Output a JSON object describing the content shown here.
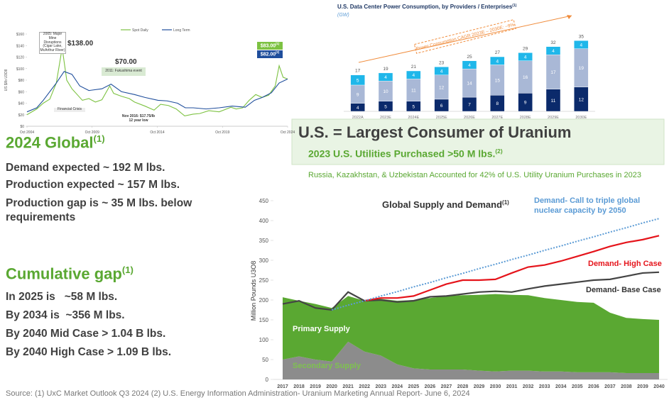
{
  "left": {
    "global": {
      "title": "2024 Global",
      "note": "(1)",
      "lines": [
        "Demand expected ~ 192 M lbs.",
        "Production expected ~ 157 M lbs.",
        "Production gap is ~ 35 M lbs. below requirements"
      ]
    },
    "cumulative": {
      "title": "Cumulative gap",
      "note": "(1)",
      "lines": [
        "In 2025 is   ~58 M lbs.",
        "By 2034 is  ~356 M lbs.",
        "By 2040 Mid Case > 1.04 B lbs.",
        "By 2040 High Case > 1.09 B lbs."
      ]
    }
  },
  "us_box": {
    "title": "U.S. = Largest Consumer of Uranium",
    "subtitle": "2023 U.S. Utilities Purchased >50 M lbs.",
    "subtitle_note": "(2)",
    "detail": "Russia, Kazakhstan, & Uzbekistan Accounted for 42% of U.S. Utility Uranium Purchases in 2023"
  },
  "source": "Source: (1) UxC Market Outlook Q3 2024 (2) U.S. Energy Information Administration- Uranium Marketing Annual Report- June 6, 2024",
  "chart_data": [
    {
      "type": "line",
      "ylabel": "US $/lb U3O8",
      "xlim": [
        2004.75,
        2024.75
      ],
      "xticks": [
        {
          "value": 2004.75,
          "label": "Oct 2004"
        },
        {
          "value": 2009.75,
          "label": "Oct 2009"
        },
        {
          "value": 2014.75,
          "label": "Oct 2014"
        },
        {
          "value": 2019.75,
          "label": "Oct 2019"
        },
        {
          "value": 2024.75,
          "label": "Oct 2024"
        }
      ],
      "ylim": [
        0,
        160
      ],
      "yticks": [
        {
          "value": 0,
          "label": "$0"
        },
        {
          "value": 20,
          "label": "$20"
        },
        {
          "value": 40,
          "label": "$40"
        },
        {
          "value": 60,
          "label": "$60"
        },
        {
          "value": 80,
          "label": "$80"
        },
        {
          "value": 100,
          "label": "$100"
        },
        {
          "value": 120,
          "label": "$120"
        },
        {
          "value": 140,
          "label": "$140"
        },
        {
          "value": 160,
          "label": "$160"
        }
      ],
      "series": [
        {
          "name": "Spot Daily",
          "color": "#7dc242",
          "x": [
            2004.75,
            2005.5,
            2006,
            2006.5,
            2007,
            2007.45,
            2007.8,
            2008.2,
            2008.6,
            2009,
            2009.5,
            2010,
            2010.5,
            2011.1,
            2011.4,
            2012,
            2012.6,
            2013,
            2013.8,
            2014.5,
            2015,
            2015.6,
            2016.2,
            2016.85,
            2017.5,
            2018,
            2018.7,
            2019.5,
            2020.4,
            2020.8,
            2021.3,
            2021.8,
            2022.3,
            2022.8,
            2023.3,
            2023.8,
            2024.1,
            2024.4,
            2024.75
          ],
          "values": [
            20,
            30,
            40,
            47,
            75,
            136,
            80,
            65,
            55,
            45,
            48,
            42,
            46,
            70,
            57,
            52,
            48,
            42,
            35,
            28,
            38,
            36,
            30,
            18,
            21,
            22,
            27,
            25,
            33,
            30,
            32,
            45,
            55,
            50,
            54,
            70,
            105,
            85,
            82
          ]
        },
        {
          "name": "Long Term",
          "color": "#1f4e9c",
          "x": [
            2004.75,
            2005.5,
            2006,
            2007,
            2007.6,
            2008.2,
            2008.8,
            2009.5,
            2010.5,
            2011.2,
            2012,
            2013,
            2013.8,
            2014.8,
            2015.5,
            2016.3,
            2016.9,
            2017.5,
            2018.5,
            2019.5,
            2020.5,
            2021.5,
            2022.2,
            2022.8,
            2023.5,
            2024.1,
            2024.75
          ],
          "values": [
            25,
            32,
            45,
            75,
            95,
            90,
            70,
            62,
            65,
            73,
            60,
            55,
            50,
            45,
            44,
            40,
            32,
            32,
            30,
            32,
            35,
            33,
            45,
            50,
            58,
            75,
            82
          ]
        }
      ],
      "annotations": [
        {
          "text": "$138.00"
        },
        {
          "text": "2005: Major Mine Disruptions (Cigar Lake, McArthur River)"
        },
        {
          "text": "$70.00"
        },
        {
          "text": "2011: Fukushima event"
        },
        {
          "text": "Financial Crisis"
        },
        {
          "text": "Nov 2016: $17.75/lb 12 year low"
        },
        {
          "text": "$83.00",
          "note": "(1)"
        },
        {
          "text": "$82.00",
          "note": "(2)"
        }
      ]
    },
    {
      "type": "bar",
      "title": "U.S. Data Center Power Consumption, by Providers / Enterprises",
      "title_note": "(1)",
      "subtitle": "(GW)",
      "annotation": "Power Consumption CAGR 2023E – 2030E: ~9%",
      "categories": [
        "2022A",
        "2023E",
        "2024E",
        "2025E",
        "2026E",
        "2027E",
        "2028E",
        "2029E",
        "2030E"
      ],
      "ylim": [
        0,
        40
      ],
      "series": [
        {
          "color": "#0b2a6b",
          "values": [
            4,
            5,
            5,
            6,
            7,
            8,
            9,
            11,
            12
          ]
        },
        {
          "color": "#a9b8d6",
          "values": [
            9,
            10,
            11,
            12,
            14,
            15,
            16,
            17,
            19
          ]
        },
        {
          "color": "#1fb7ea",
          "values": [
            5,
            4,
            4,
            4,
            4,
            4,
            4,
            4,
            4
          ]
        }
      ],
      "totals": [
        17,
        19,
        21,
        23,
        25,
        27,
        29,
        32,
        35
      ]
    },
    {
      "type": "area",
      "title": "Global Supply and Demand",
      "title_note": "(1)",
      "ylabel": "Million Pounds U3O8",
      "categories": [
        "2017",
        "2018",
        "2019",
        "2020",
        "2021",
        "2022",
        "2023",
        "2024",
        "2025",
        "2026",
        "2027",
        "2028",
        "2029",
        "2030",
        "2031",
        "2032",
        "2033",
        "2034",
        "2035",
        "2036",
        "2037",
        "2038",
        "2039",
        "2040"
      ],
      "ylim": [
        0,
        450
      ],
      "yticks": [
        0,
        50,
        100,
        150,
        200,
        250,
        300,
        350,
        400,
        450
      ],
      "series": [
        {
          "name": "Secondary Supply",
          "kind": "area",
          "stacked": true,
          "color": "#8c8c8c",
          "values": [
            50,
            58,
            50,
            45,
            95,
            70,
            60,
            38,
            28,
            25,
            25,
            25,
            22,
            20,
            22,
            22,
            20,
            20,
            18,
            18,
            18,
            16,
            16,
            16
          ]
        },
        {
          "name": "Primary Supply",
          "kind": "area",
          "stacked": true,
          "color": "#5aa832",
          "values": [
            157,
            140,
            140,
            135,
            115,
            128,
            143,
            160,
            172,
            180,
            185,
            187,
            191,
            195,
            191,
            190,
            185,
            180,
            177,
            175,
            150,
            139,
            136,
            134
          ]
        },
        {
          "name": "Demand- Base Case",
          "kind": "line",
          "color": "#444444",
          "values": [
            190,
            198,
            180,
            175,
            220,
            198,
            200,
            195,
            198,
            208,
            210,
            215,
            220,
            222,
            220,
            228,
            235,
            240,
            245,
            250,
            252,
            260,
            268,
            270
          ]
        },
        {
          "name": "Demand- High Case",
          "kind": "line",
          "color": "#e5141b",
          "values": [
            null,
            null,
            null,
            null,
            null,
            198,
            205,
            205,
            210,
            225,
            240,
            250,
            250,
            252,
            268,
            283,
            288,
            298,
            310,
            322,
            335,
            345,
            352,
            362
          ]
        },
        {
          "name": "Demand- Call to triple global nuclear capacity by 2050",
          "kind": "line",
          "dotted": true,
          "color": "#5b9bd5",
          "values": [
            null,
            null,
            null,
            175,
            187,
            198,
            210,
            221,
            233,
            244,
            256,
            267,
            279,
            290,
            302,
            313,
            325,
            336,
            348,
            359,
            371,
            382,
            394,
            405
          ]
        }
      ]
    }
  ]
}
